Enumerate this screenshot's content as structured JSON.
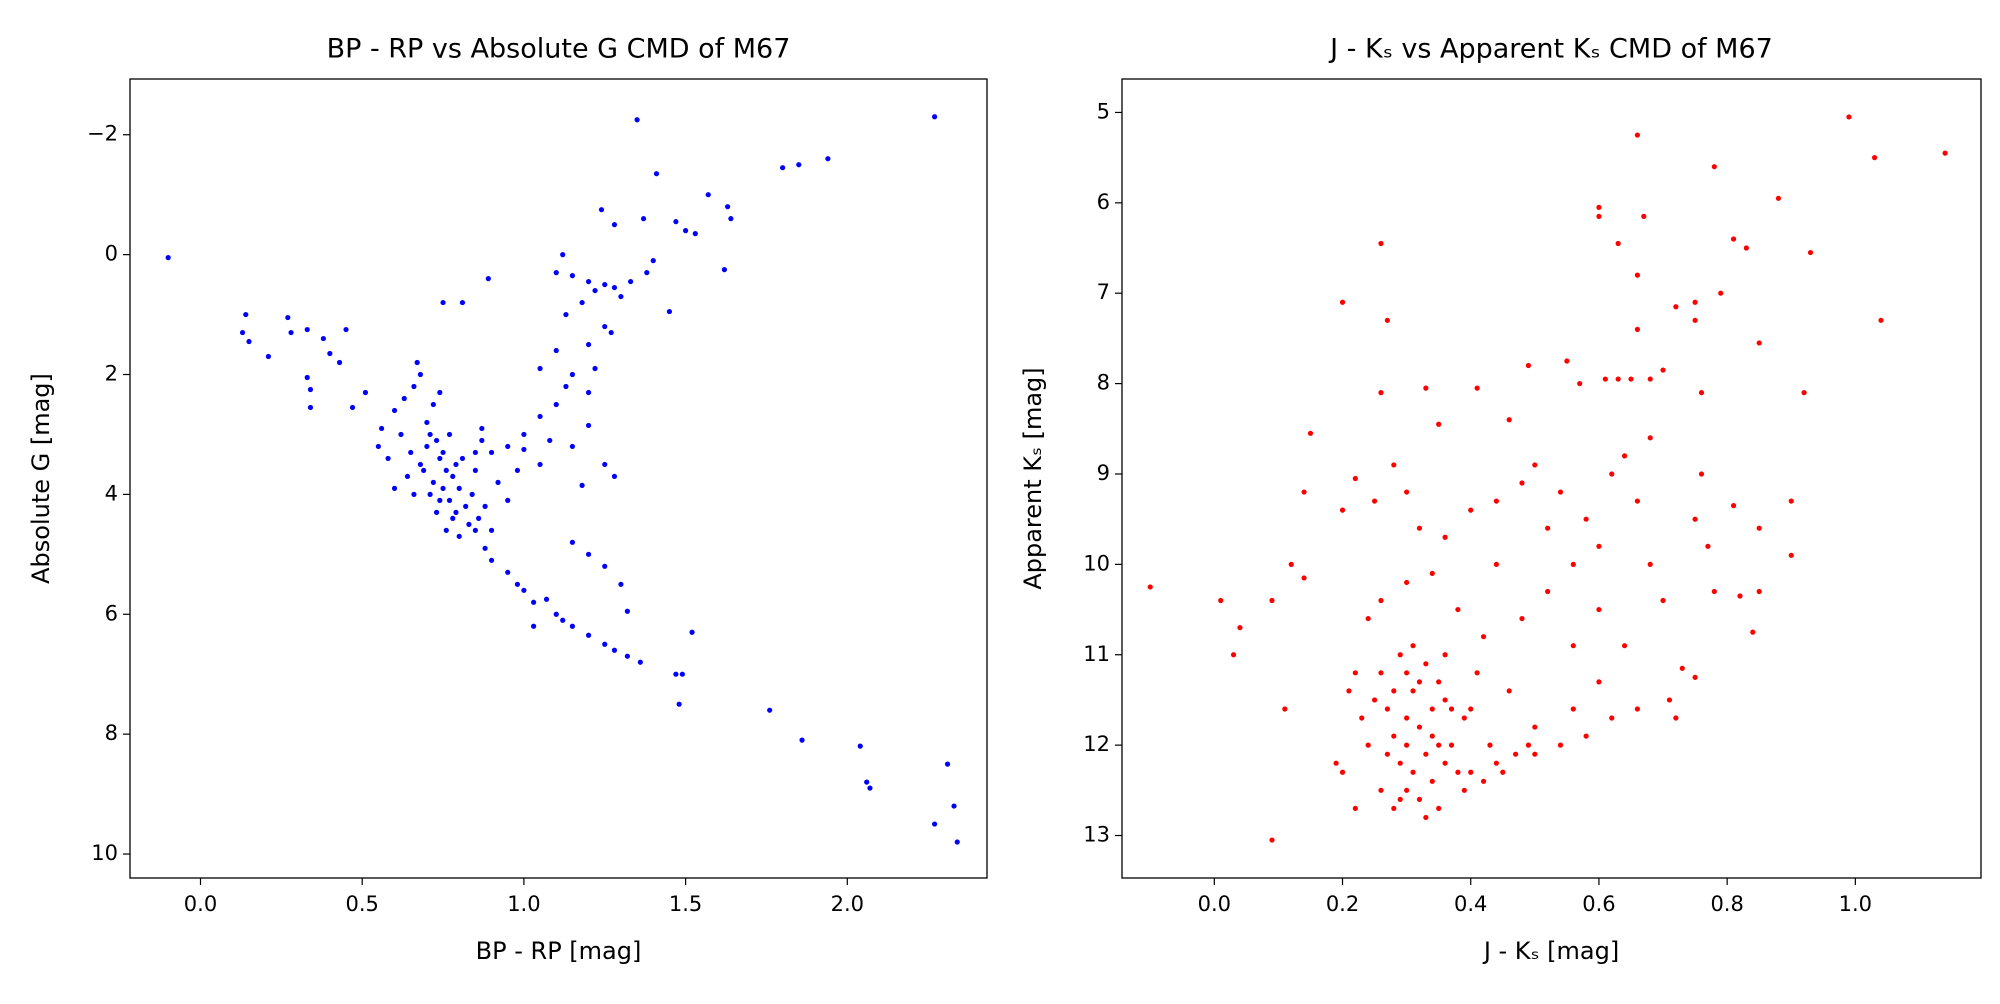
{
  "chart_data": [
    {
      "type": "scatter",
      "title": "BP - RP vs Absolute G CMD of M67",
      "x_label": "BP - RP [mag]",
      "y_label": "Absolute G [mag]",
      "color": "#0000ff",
      "xlim": [
        -0.218,
        2.432
      ],
      "ylim": [
        10.4,
        -2.93
      ],
      "xticks": [
        {
          "value": 0,
          "label": "0.0"
        },
        0.5,
        {
          "value": 1,
          "label": "1.0"
        },
        1.5,
        {
          "value": 2,
          "label": "2.0"
        }
      ],
      "yticks": [
        {
          "value": -2,
          "label": "−2"
        },
        0,
        2,
        4,
        6,
        8,
        10
      ],
      "x": [
        -0.1,
        1.35,
        2.27,
        1.41,
        1.8,
        1.85,
        1.94,
        1.57,
        1.63,
        1.64,
        1.24,
        1.28,
        1.37,
        1.47,
        1.5,
        1.53,
        1.62,
        1.45,
        1.12,
        0.89,
        0.81,
        0.75,
        0.13,
        0.14,
        0.15,
        0.21,
        0.27,
        0.28,
        0.33,
        0.38,
        0.4,
        0.45,
        0.43,
        0.33,
        0.34,
        0.34,
        0.47,
        0.51,
        1.1,
        1.15,
        1.2,
        1.25,
        1.22,
        1.28,
        1.3,
        1.18,
        1.13,
        1.25,
        1.2,
        1.1,
        1.05,
        1.15,
        1.2,
        1.1,
        1.05,
        1.0,
        0.95,
        0.9,
        1.08,
        1.15,
        1.2,
        1.25,
        1.28,
        1.18,
        0.85,
        0.87,
        1.0,
        1.05,
        1.13,
        1.22,
        1.27,
        1.33,
        1.38,
        1.4,
        0.62,
        0.65,
        0.68,
        0.7,
        0.72,
        0.74,
        0.75,
        0.76,
        0.77,
        0.78,
        0.79,
        0.8,
        0.82,
        0.83,
        0.84,
        0.86,
        0.88,
        0.9,
        0.7,
        0.72,
        0.74,
        0.68,
        0.66,
        0.6,
        0.58,
        0.56,
        0.55,
        0.64,
        0.66,
        0.73,
        0.76,
        0.8,
        0.71,
        0.73,
        0.75,
        0.77,
        0.79,
        0.81,
        0.69,
        0.71,
        0.74,
        0.78,
        0.63,
        0.67,
        0.85,
        0.92,
        0.95,
        0.98,
        0.87,
        0.6,
        0.85,
        0.88,
        0.9,
        0.95,
        0.98,
        1.0,
        1.03,
        1.07,
        1.1,
        1.12,
        1.15,
        1.2,
        1.25,
        1.28,
        1.32,
        1.36,
        1.47,
        1.49,
        1.48,
        1.52,
        1.32,
        1.76,
        1.86,
        2.04,
        2.06,
        2.07,
        2.31,
        2.33,
        2.34,
        2.27,
        1.03,
        1.15,
        1.2,
        1.25,
        1.3
      ],
      "values": [
        0.05,
        -2.25,
        -2.3,
        -1.35,
        -1.45,
        -1.5,
        -1.6,
        -1.0,
        -0.8,
        -0.6,
        -0.75,
        -0.5,
        -0.6,
        -0.55,
        -0.4,
        -0.35,
        0.25,
        0.95,
        0.0,
        0.4,
        0.8,
        0.8,
        1.3,
        1.0,
        1.45,
        1.7,
        1.05,
        1.3,
        1.25,
        1.4,
        1.65,
        1.25,
        1.8,
        2.05,
        2.25,
        2.55,
        2.55,
        2.3,
        0.3,
        0.35,
        0.45,
        0.5,
        0.6,
        0.55,
        0.7,
        0.8,
        1.0,
        1.2,
        1.5,
        1.6,
        1.9,
        2.0,
        2.3,
        2.5,
        2.7,
        3.0,
        3.2,
        3.3,
        3.1,
        3.2,
        2.85,
        3.5,
        3.7,
        3.85,
        3.3,
        2.9,
        3.25,
        3.5,
        2.2,
        1.9,
        1.3,
        0.45,
        0.3,
        0.1,
        3.0,
        3.3,
        3.5,
        3.2,
        3.8,
        3.4,
        3.9,
        3.6,
        4.1,
        3.7,
        4.3,
        3.9,
        4.2,
        4.5,
        4.0,
        4.4,
        4.2,
        4.6,
        2.8,
        2.5,
        2.3,
        2.0,
        2.2,
        2.6,
        3.4,
        2.9,
        3.2,
        3.7,
        4.0,
        4.3,
        4.6,
        4.7,
        3.0,
        3.1,
        3.3,
        3.0,
        3.5,
        3.4,
        3.6,
        4.0,
        4.1,
        4.4,
        2.4,
        1.8,
        3.6,
        3.8,
        4.1,
        3.6,
        3.1,
        3.9,
        4.6,
        4.9,
        5.1,
        5.3,
        5.5,
        5.6,
        5.8,
        5.75,
        6.0,
        6.1,
        6.2,
        6.35,
        6.5,
        6.6,
        6.7,
        6.8,
        7.0,
        7.0,
        7.5,
        6.3,
        5.95,
        7.6,
        8.1,
        8.2,
        8.8,
        8.9,
        8.5,
        9.2,
        9.8,
        9.5,
        6.2,
        4.8,
        5.0,
        5.2,
        5.5
      ]
    },
    {
      "type": "scatter",
      "title": "J - Kₛ vs Apparent Kₛ CMD of M67",
      "x_label": "J - Kₛ [mag]",
      "y_label": "Apparent Kₛ [mag]",
      "color": "#ff0000",
      "xlim": [
        -0.144,
        1.196
      ],
      "ylim": [
        13.47,
        4.63
      ],
      "xticks": [
        {
          "value": 0,
          "label": "0.0"
        },
        0.2,
        0.4,
        0.6,
        0.8,
        {
          "value": 1,
          "label": "1.0"
        }
      ],
      "yticks": [
        5,
        6,
        7,
        8,
        9,
        10,
        11,
        12,
        13
      ],
      "x": [
        -0.1,
        0.01,
        0.03,
        0.04,
        0.09,
        0.09,
        0.11,
        0.12,
        0.14,
        0.14,
        0.15,
        0.2,
        0.26,
        0.27,
        0.26,
        0.33,
        0.35,
        0.41,
        0.46,
        0.49,
        0.55,
        0.57,
        0.6,
        0.6,
        0.63,
        0.66,
        0.67,
        0.66,
        0.66,
        0.7,
        0.72,
        0.75,
        0.75,
        0.78,
        0.79,
        0.81,
        0.83,
        0.88,
        0.93,
        0.99,
        1.03,
        1.04,
        1.14,
        0.85,
        0.92,
        0.61,
        0.63,
        0.65,
        0.68,
        0.76,
        0.76,
        0.75,
        0.77,
        0.78,
        0.81,
        0.85,
        0.85,
        0.82,
        0.84,
        0.9,
        0.9,
        0.73,
        0.75,
        0.71,
        0.72,
        0.2,
        0.22,
        0.25,
        0.28,
        0.3,
        0.32,
        0.36,
        0.4,
        0.44,
        0.48,
        0.5,
        0.52,
        0.54,
        0.56,
        0.58,
        0.6,
        0.62,
        0.64,
        0.66,
        0.68,
        0.68,
        0.7,
        0.64,
        0.6,
        0.56,
        0.5,
        0.46,
        0.42,
        0.38,
        0.34,
        0.3,
        0.26,
        0.24,
        0.22,
        0.48,
        0.52,
        0.56,
        0.6,
        0.62,
        0.66,
        0.54,
        0.58,
        0.5,
        0.44,
        0.4,
        0.36,
        0.44,
        0.26,
        0.27,
        0.28,
        0.29,
        0.3,
        0.31,
        0.32,
        0.33,
        0.34,
        0.35,
        0.36,
        0.37,
        0.38,
        0.39,
        0.4,
        0.41,
        0.42,
        0.29,
        0.31,
        0.33,
        0.35,
        0.3,
        0.32,
        0.34,
        0.36,
        0.28,
        0.26,
        0.24,
        0.22,
        0.25,
        0.33,
        0.3,
        0.32,
        0.34,
        0.37,
        0.39,
        0.43,
        0.45,
        0.47,
        0.49,
        0.28,
        0.3,
        0.35,
        0.31,
        0.27,
        0.29,
        0.23,
        0.21,
        0.19,
        0.2
      ],
      "values": [
        10.25,
        10.4,
        11.0,
        10.7,
        13.05,
        10.4,
        11.6,
        10.0,
        10.15,
        9.2,
        8.55,
        7.1,
        6.45,
        7.3,
        8.1,
        8.05,
        8.45,
        8.05,
        8.4,
        7.8,
        7.75,
        8.0,
        6.05,
        6.15,
        6.45,
        5.25,
        6.15,
        6.8,
        7.4,
        7.85,
        7.15,
        7.1,
        7.3,
        5.6,
        7.0,
        6.4,
        6.5,
        5.95,
        6.55,
        5.05,
        5.5,
        7.3,
        5.45,
        7.55,
        8.1,
        7.95,
        7.95,
        7.95,
        7.95,
        8.1,
        9.0,
        9.5,
        9.8,
        10.3,
        9.35,
        9.6,
        10.3,
        10.35,
        10.75,
        9.3,
        9.9,
        11.15,
        11.25,
        11.5,
        11.7,
        9.4,
        9.05,
        9.3,
        8.9,
        9.2,
        9.6,
        9.7,
        9.4,
        9.3,
        9.1,
        8.9,
        9.6,
        9.2,
        10.0,
        9.5,
        9.8,
        9.0,
        8.8,
        9.3,
        8.6,
        10.0,
        10.4,
        10.9,
        11.3,
        11.6,
        11.8,
        11.4,
        10.8,
        10.5,
        10.1,
        10.2,
        10.4,
        10.6,
        11.2,
        10.6,
        10.3,
        10.9,
        10.5,
        11.7,
        11.6,
        12.0,
        11.9,
        12.1,
        12.2,
        11.6,
        11.0,
        10.0,
        11.2,
        11.6,
        11.9,
        12.2,
        12.5,
        11.4,
        11.8,
        12.1,
        12.4,
        12.7,
        11.5,
        12.0,
        12.3,
        11.7,
        12.3,
        11.2,
        12.4,
        11.0,
        10.9,
        11.1,
        11.3,
        11.7,
        12.6,
        11.6,
        12.2,
        12.7,
        12.5,
        12.0,
        12.7,
        11.5,
        12.8,
        12.0,
        11.3,
        11.9,
        11.6,
        12.5,
        12.0,
        12.3,
        12.1,
        12.0,
        11.4,
        11.2,
        12.0,
        12.3,
        12.1,
        12.6,
        11.7,
        11.4,
        12.2,
        12.3
      ]
    }
  ]
}
